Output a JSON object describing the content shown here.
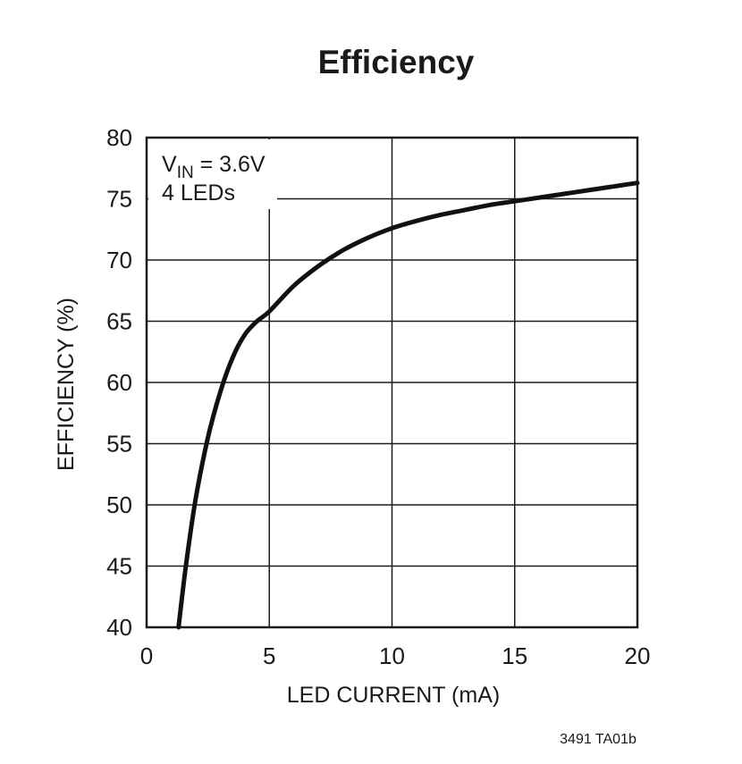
{
  "chart_data": {
    "type": "line",
    "title": "Efficiency",
    "xlabel": "LED CURRENT (mA)",
    "ylabel": "EFFICIENCY (%)",
    "xlim": [
      0,
      20
    ],
    "ylim": [
      40,
      80
    ],
    "xticks": [
      0,
      5,
      10,
      15,
      20
    ],
    "yticks": [
      40,
      45,
      50,
      55,
      60,
      65,
      70,
      75,
      80
    ],
    "grid": true,
    "annotation": {
      "v_main": "V",
      "v_sub": "IN",
      "v_value": " = 3.6V",
      "line2": "4 LEDs"
    },
    "series": [
      {
        "x": [
          1.3,
          1.6,
          2.0,
          2.5,
          3.0,
          3.5,
          4.0,
          4.5,
          5.0,
          6.0,
          7.0,
          8.0,
          9.0,
          10.0,
          11.0,
          12.0,
          13.0,
          14.0,
          15.0,
          16.0,
          17.0,
          18.0,
          19.0,
          20.0
        ],
        "y": [
          40.0,
          45.0,
          50.5,
          55.5,
          59.2,
          62.0,
          63.9,
          65.0,
          65.8,
          67.9,
          69.5,
          70.8,
          71.8,
          72.6,
          73.2,
          73.7,
          74.1,
          74.5,
          74.8,
          75.1,
          75.4,
          75.7,
          76.0,
          76.3
        ]
      }
    ],
    "footer_code": "3491 TA01b"
  }
}
